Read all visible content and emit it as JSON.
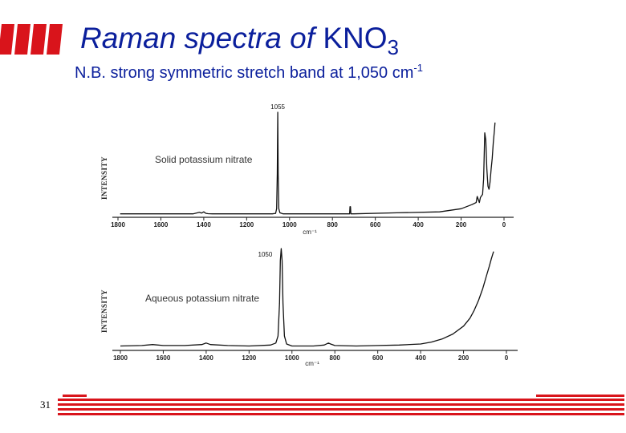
{
  "slide": {
    "title_italic": "Raman spectra of ",
    "title_formula": "KNO",
    "title_subscript": "3",
    "subtitle_text": "N.B. strong symmetric stretch band at 1,050 cm",
    "subtitle_superscript": "-1",
    "slide_number": "31",
    "accent_color": "#d9141b",
    "text_color": "#0b1f9c"
  },
  "chart_data": [
    {
      "type": "line",
      "sample_label": "Solid potassium nitrate",
      "ylabel": "INTENSITY",
      "xlabel": "cm⁻¹",
      "peak_label": "1055",
      "xlim": [
        1800,
        0
      ],
      "x_reversed": true,
      "ticks": [
        1800,
        1600,
        1400,
        1200,
        1000,
        800,
        600,
        400,
        200,
        0
      ],
      "tick_labels": [
        "1800",
        "1600",
        "1400",
        "1200",
        "1000",
        "800",
        "600",
        "400",
        "200",
        "0"
      ],
      "ylim": [
        0,
        100
      ],
      "series": [
        {
          "x": [
            1790,
            1600,
            1450,
            1420,
            1410,
            1400,
            1390,
            1380,
            1360,
            1200,
            1080,
            1065,
            1060,
            1057,
            1055,
            1053,
            1050,
            1045,
            1030,
            900,
            720,
            718,
            716,
            714,
            712,
            700,
            500,
            300,
            200,
            150,
            130,
            125,
            115,
            110,
            100,
            95,
            90,
            85,
            80,
            75,
            70,
            65,
            60,
            55,
            50,
            45,
            42
          ],
          "y": [
            1,
            1,
            1,
            2.5,
            1.8,
            3,
            1.5,
            1.2,
            1,
            1,
            1,
            1.5,
            6,
            40,
            100,
            40,
            6,
            2,
            1,
            1,
            1,
            8,
            8,
            1,
            1,
            1,
            2,
            3,
            6,
            10,
            12,
            18,
            12,
            17,
            20,
            35,
            80,
            73,
            45,
            28,
            25,
            32,
            45,
            55,
            70,
            82,
            90
          ]
        }
      ]
    },
    {
      "type": "line",
      "sample_label": "Aqueous potassium nitrate",
      "ylabel": "INTENSITY",
      "xlabel": "cm⁻¹",
      "peak_label": "1050",
      "xlim": [
        1800,
        0
      ],
      "x_reversed": true,
      "ticks": [
        1800,
        1600,
        1400,
        1200,
        1000,
        800,
        600,
        400,
        200,
        0
      ],
      "tick_labels": [
        "1800",
        "1600",
        "1400",
        "1200",
        "1000",
        "800",
        "600",
        "400",
        "200",
        "0"
      ],
      "ylim": [
        0,
        100
      ],
      "series": [
        {
          "x": [
            1800,
            1700,
            1650,
            1600,
            1500,
            1420,
            1400,
            1380,
            1300,
            1200,
            1100,
            1075,
            1065,
            1058,
            1054,
            1050,
            1046,
            1042,
            1035,
            1025,
            1000,
            900,
            850,
            830,
            820,
            800,
            700,
            600,
            500,
            400,
            350,
            300,
            250,
            200,
            170,
            150,
            130,
            110,
            90,
            80,
            70,
            60
          ],
          "y": [
            2,
            2.5,
            3.5,
            2.5,
            2.5,
            3.5,
            5,
            3.5,
            2.5,
            2,
            3,
            5,
            12,
            45,
            88,
            100,
            88,
            45,
            12,
            4,
            2,
            2,
            3,
            5,
            4,
            2.5,
            2,
            2.5,
            3,
            4,
            6,
            9,
            14,
            22,
            30,
            38,
            48,
            60,
            75,
            82,
            90,
            97
          ]
        }
      ]
    }
  ]
}
